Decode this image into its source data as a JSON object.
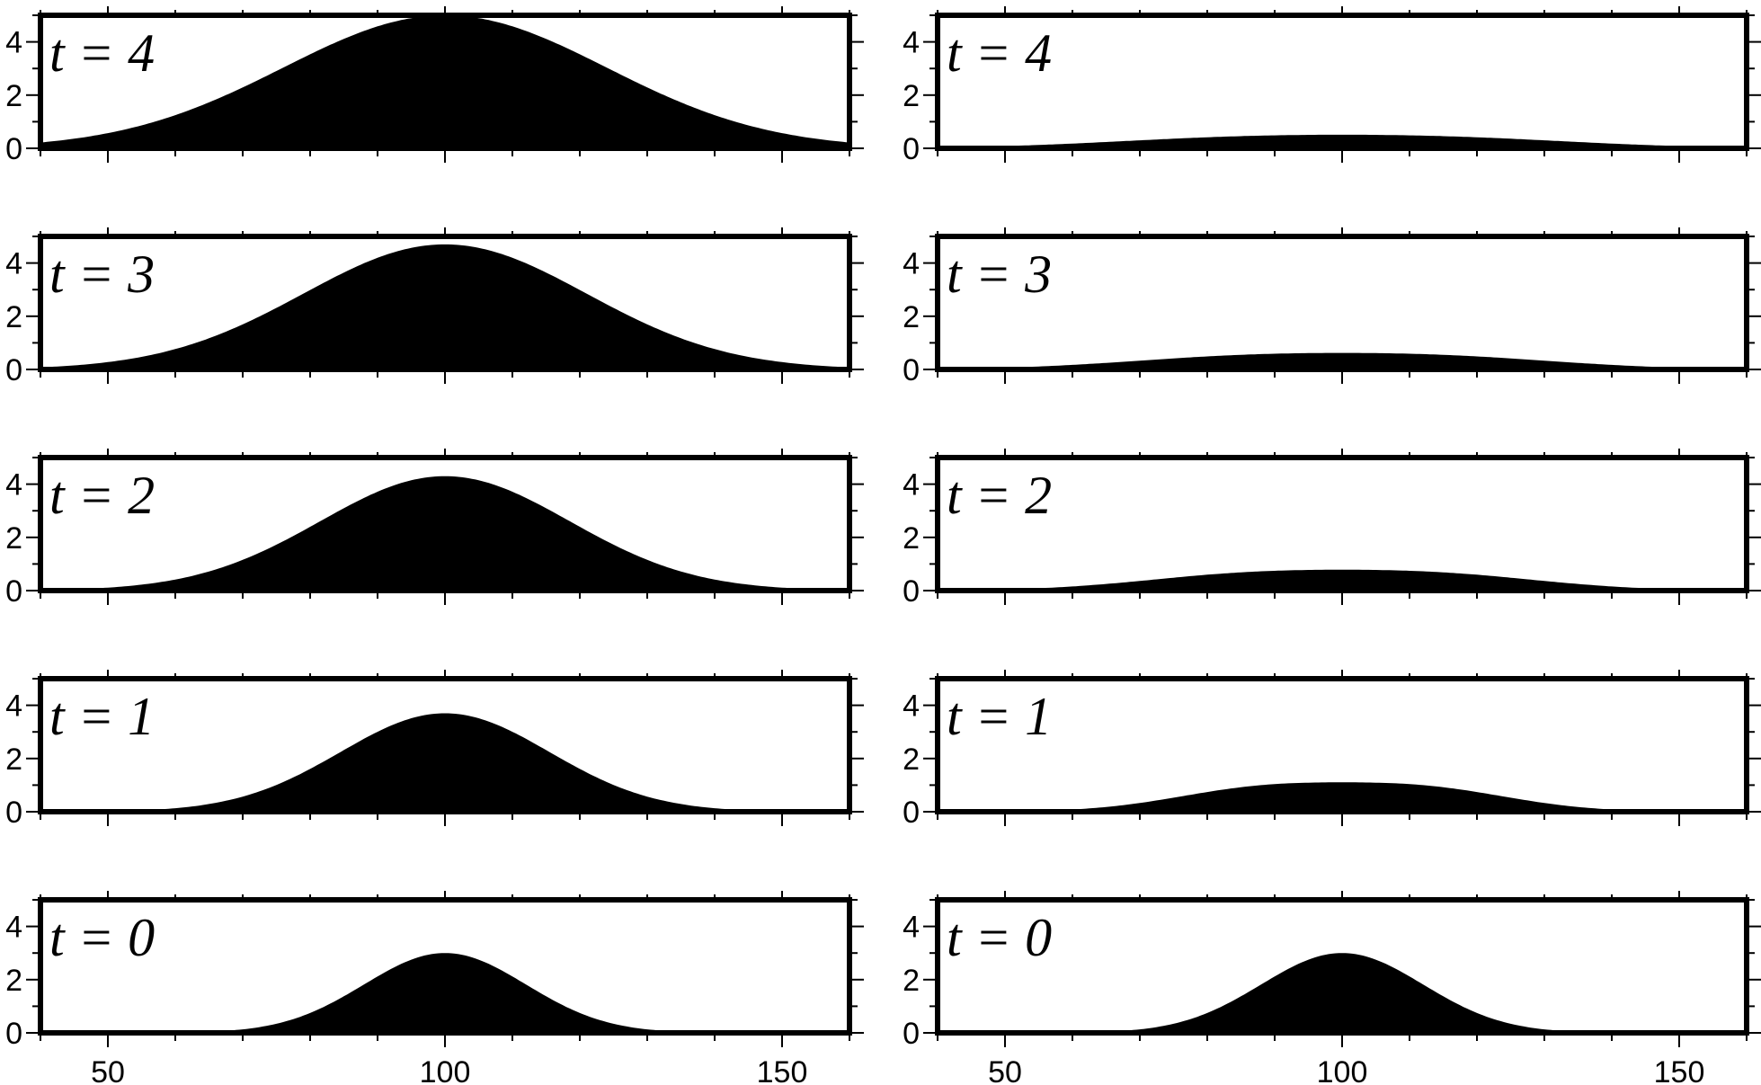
{
  "chart_data": {
    "type": "area",
    "layout": "5 rows x 2 columns of small-multiple panels",
    "x_ticks_major": [
      50,
      100,
      150
    ],
    "x_ticks_minor_step": 10,
    "y_ticks_major": [
      0,
      2,
      4
    ],
    "y_ticks_minor_step": 1,
    "fill_color": "#000000",
    "frame_color": "#000000",
    "background_color": "#ffffff",
    "grid": false,
    "columns": [
      {
        "column": "left",
        "xlim": [
          40,
          160
        ],
        "ylim": [
          0,
          5
        ],
        "panels": [
          {
            "label": "t = 4",
            "time": 4,
            "shape": "single-peak",
            "peak_x": 100,
            "peak_y": 5.0,
            "width": 24
          },
          {
            "label": "t = 3",
            "time": 3,
            "shape": "single-peak",
            "peak_x": 100,
            "peak_y": 4.7,
            "width": 21
          },
          {
            "label": "t = 2",
            "time": 2,
            "shape": "single-peak",
            "peak_x": 100,
            "peak_y": 4.3,
            "width": 18.5
          },
          {
            "label": "t = 1",
            "time": 1,
            "shape": "single-peak",
            "peak_x": 100,
            "peak_y": 3.7,
            "width": 15.5
          },
          {
            "label": "t = 0",
            "time": 0,
            "shape": "single-peak",
            "peak_x": 100,
            "peak_y": 3.0,
            "width": 12
          }
        ]
      },
      {
        "column": "right",
        "xlim": [
          40,
          160
        ],
        "ylim": [
          0,
          5
        ],
        "panels": [
          {
            "label": "t = 4",
            "time": 4,
            "shape": "twin-peak",
            "peaks_x": [
              84,
              116
            ],
            "peak_y": 0.45,
            "center_y": 0.4,
            "width": 20
          },
          {
            "label": "t = 3",
            "time": 3,
            "shape": "twin-peak",
            "peaks_x": [
              85,
              115
            ],
            "peak_y": 0.55,
            "center_y": 0.48,
            "width": 18
          },
          {
            "label": "t = 2",
            "time": 2,
            "shape": "twin-peak",
            "peaks_x": [
              86,
              114
            ],
            "peak_y": 0.7,
            "center_y": 0.6,
            "width": 16
          },
          {
            "label": "t = 1",
            "time": 1,
            "shape": "twin-peak",
            "peaks_x": [
              88,
              112
            ],
            "peak_y": 1.0,
            "center_y": 0.85,
            "width": 13
          },
          {
            "label": "t = 0",
            "time": 0,
            "shape": "single-peak",
            "peak_x": 100,
            "peak_y": 3.0,
            "width": 12
          }
        ]
      }
    ]
  }
}
